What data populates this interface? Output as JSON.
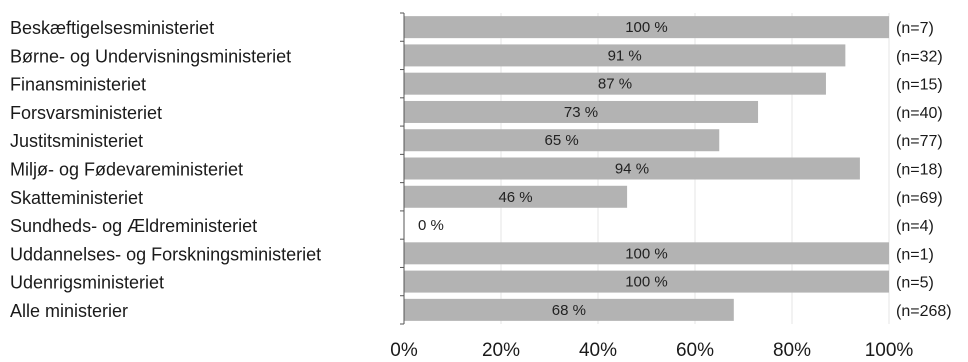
{
  "chart_data": {
    "type": "bar",
    "orientation": "horizontal",
    "categories": [
      "Beskæftigelsesministeriet",
      "Børne- og Undervisningsministeriet",
      "Finansministeriet",
      "Forsvarsministeriet",
      "Justitsministeriet",
      "Miljø- og Fødevareministeriet",
      "Skatteministeriet",
      "Sundheds- og Ældreministeriet",
      "Uddannelses- og Forskningsministeriet",
      "Udenrigsministeriet",
      "Alle ministerier"
    ],
    "values": [
      100,
      91,
      87,
      73,
      65,
      94,
      46,
      0,
      100,
      100,
      68
    ],
    "value_labels": [
      "100 %",
      "91 %",
      "87 %",
      "73 %",
      "65 %",
      "94 %",
      "46 %",
      "0 %",
      "100 %",
      "100 %",
      "68 %"
    ],
    "n_labels": [
      "(n=7)",
      "(n=32)",
      "(n=15)",
      "(n=40)",
      "(n=77)",
      "(n=18)",
      "(n=69)",
      "(n=4)",
      "(n=1)",
      "(n=5)",
      "(n=268)"
    ],
    "xlim": [
      0,
      100
    ],
    "xticks": [
      "0%",
      "20%",
      "40%",
      "60%",
      "80%",
      "100%"
    ],
    "xtick_values": [
      0,
      20,
      40,
      60,
      80,
      100
    ],
    "grid": true,
    "bar_color": "#b3b3b3",
    "grid_color": "#e6e6e6",
    "axis_color": "#555555"
  }
}
